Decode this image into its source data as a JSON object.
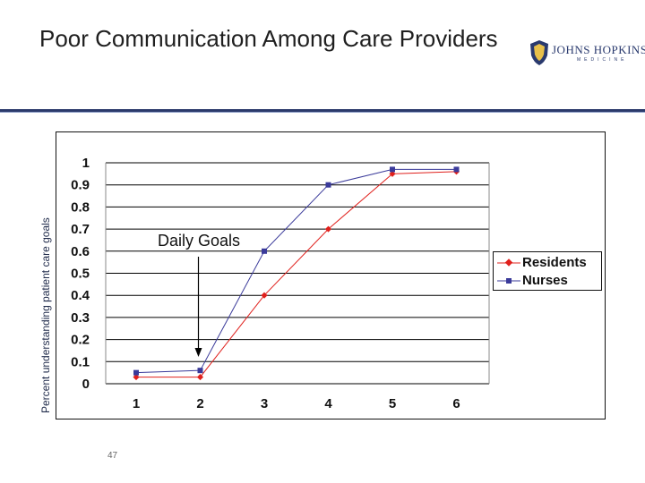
{
  "slide": {
    "title": "Poor Communication Among Care Providers",
    "page_number": "47",
    "logo": {
      "name": "JOHNS HOPKINS",
      "sub": "MEDICINE",
      "color": "#2a3a6e"
    },
    "rule_color": "#2b3a6b"
  },
  "chart_data": {
    "type": "line",
    "title": "",
    "xlabel": "",
    "ylabel": "Percent understanding patient care goals",
    "categories": [
      "1",
      "2",
      "3",
      "4",
      "5",
      "6"
    ],
    "y_ticks": [
      "0",
      "0.1",
      "0.2",
      "0.3",
      "0.4",
      "0.5",
      "0.6",
      "0.7",
      "0.8",
      "0.9",
      "1"
    ],
    "ylim": [
      0,
      1
    ],
    "grid": "horizontal",
    "legend_position": "right",
    "series": [
      {
        "name": "Residents",
        "color": "#e0201c",
        "marker": "diamond",
        "values": [
          0.03,
          0.03,
          0.4,
          0.7,
          0.95,
          0.96
        ]
      },
      {
        "name": "Nurses",
        "color": "#3a3a9a",
        "marker": "square",
        "values": [
          0.05,
          0.06,
          0.6,
          0.9,
          0.97,
          0.97
        ]
      }
    ],
    "annotation": {
      "text": "Daily Goals",
      "at_category": "2"
    }
  }
}
